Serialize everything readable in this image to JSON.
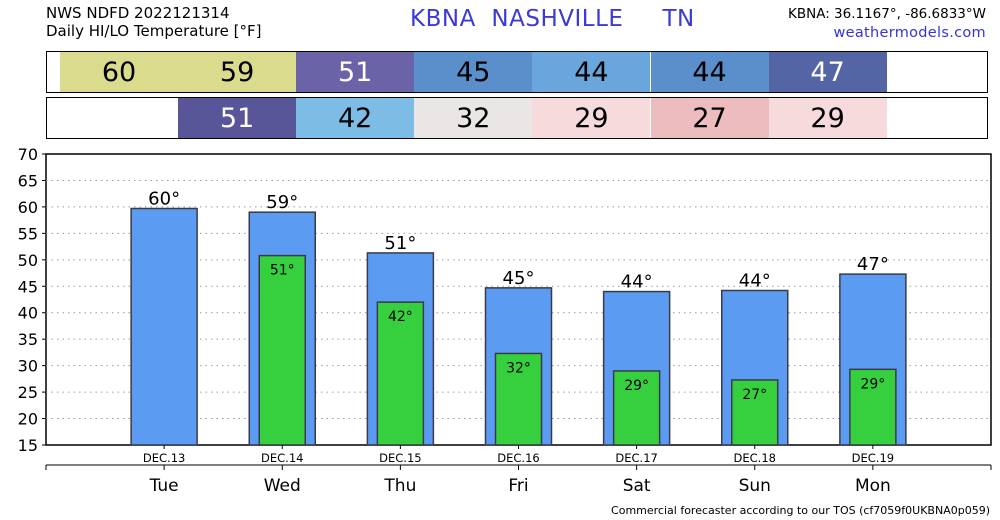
{
  "header": {
    "line1": "NWS NDFD 2022121314",
    "line2": "Daily HI/LO Temperature [°F]",
    "station": "KBNA  NASHVILLE     TN",
    "coords": "KBNA: 36.1167°, -86.6833°W",
    "site": "weathermodels.com"
  },
  "hi_strip": [
    {
      "value": "60",
      "color": "#dbdb8e"
    },
    {
      "value": "59",
      "color": "#dbdb8e"
    },
    {
      "value": "51",
      "color": "#6a63a8"
    },
    {
      "value": "45",
      "color": "#5b8fcc"
    },
    {
      "value": "44",
      "color": "#6aa6dc"
    },
    {
      "value": "44",
      "color": "#5b8fcc"
    },
    {
      "value": "47",
      "color": "#5465a6"
    }
  ],
  "lo_strip": [
    {
      "value": "",
      "color": "#ffffff"
    },
    {
      "value": "51",
      "color": "#585598"
    },
    {
      "value": "42",
      "color": "#7dbde5"
    },
    {
      "value": "32",
      "color": "#ebe6e6"
    },
    {
      "value": "29",
      "color": "#f6dadc"
    },
    {
      "value": "27",
      "color": "#ecbcbf"
    },
    {
      "value": "29",
      "color": "#f6dadc"
    }
  ],
  "colors": {
    "hi_bar": "#5b9cf2",
    "lo_bar": "#36d03f",
    "bar_border": "#3a3a4a",
    "white_text": "#ffffff"
  },
  "chart_data": {
    "type": "bar",
    "categories": [
      "Tue",
      "Wed",
      "Thu",
      "Fri",
      "Sat",
      "Sun",
      "Mon"
    ],
    "dates": [
      "DEC.13",
      "DEC.14",
      "DEC.15",
      "DEC.16",
      "DEC.17",
      "DEC.18",
      "DEC.19"
    ],
    "series": [
      {
        "values": [
          59.7,
          59.0,
          51.3,
          44.7,
          44.0,
          44.2,
          47.3
        ],
        "labels": [
          "60°",
          "59°",
          "51°",
          "45°",
          "44°",
          "44°",
          "47°"
        ]
      },
      {
        "values": [
          null,
          50.8,
          42.0,
          32.3,
          29.0,
          27.3,
          29.3
        ],
        "labels": [
          "",
          "51°",
          "42°",
          "32°",
          "29°",
          "27°",
          "29°"
        ]
      }
    ],
    "ylim": [
      15,
      70
    ],
    "yticks": [
      15,
      20,
      25,
      30,
      35,
      40,
      45,
      50,
      55,
      60,
      65,
      70
    ],
    "grid": true,
    "xlabel": "",
    "ylabel": ""
  },
  "footer": "Commercial forecaster according to our TOS (cf7059f0UKBNA0p059)"
}
